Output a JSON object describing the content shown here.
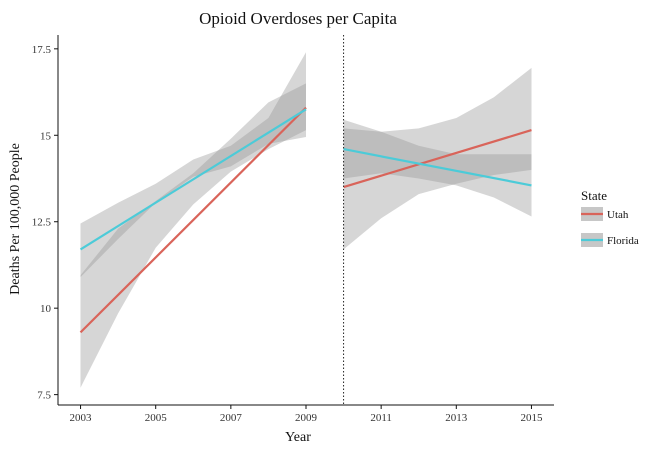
{
  "chart_data": {
    "type": "line",
    "title": "Opioid Overdoses per Capita",
    "xlabel": "Year",
    "ylabel": "Deaths Per 100,000 People",
    "xlim": [
      2002.4,
      2015.6
    ],
    "ylim": [
      7.2,
      17.9
    ],
    "x_ticks": [
      2003,
      2005,
      2007,
      2009,
      2011,
      2013,
      2015
    ],
    "y_ticks": [
      7.5,
      10,
      12.5,
      15,
      17.5
    ],
    "y_tick_labels": [
      "7.5",
      "10",
      "12.5",
      "15",
      "17.5"
    ],
    "grid": false,
    "legend_position": "right",
    "legend_title": "State",
    "cutoff_x": 2010,
    "series": [
      {
        "name": "Utah",
        "color": "#d9645a",
        "segments": [
          {
            "x": [
              2003,
              2009
            ],
            "y": [
              9.3,
              15.8
            ],
            "band_x": [
              2003,
              2004,
              2005,
              2006,
              2007,
              2008,
              2009
            ],
            "band_lower": [
              7.7,
              9.85,
              11.75,
              13.0,
              13.95,
              14.6,
              15.15
            ],
            "band_upper": [
              10.95,
              12.3,
              13.1,
              13.9,
              14.9,
              15.95,
              16.5
            ]
          },
          {
            "x": [
              2010,
              2015
            ],
            "y": [
              13.5,
              15.15
            ],
            "band_x": [
              2010,
              2011,
              2012,
              2013,
              2014,
              2015
            ],
            "band_lower": [
              11.7,
              12.6,
              13.3,
              13.6,
              13.85,
              14.0
            ],
            "band_upper": [
              15.2,
              15.1,
              15.2,
              15.5,
              16.1,
              16.95
            ]
          }
        ]
      },
      {
        "name": "Florida",
        "color": "#4ccbd8",
        "segments": [
          {
            "x": [
              2003,
              2009
            ],
            "y": [
              11.7,
              15.75
            ],
            "band_x": [
              2003,
              2004,
              2005,
              2006,
              2007,
              2008,
              2009
            ],
            "band_lower": [
              10.9,
              12.0,
              13.05,
              13.8,
              14.1,
              14.75,
              14.95
            ],
            "band_upper": [
              12.45,
              13.05,
              13.6,
              14.3,
              14.7,
              15.5,
              17.4
            ]
          },
          {
            "x": [
              2010,
              2015
            ],
            "y": [
              14.6,
              13.55
            ],
            "band_x": [
              2010,
              2011,
              2012,
              2013,
              2014,
              2015
            ],
            "band_lower": [
              13.75,
              13.9,
              13.75,
              13.55,
              13.2,
              12.65
            ],
            "band_upper": [
              15.45,
              15.1,
              14.7,
              14.45,
              14.45,
              14.45
            ]
          }
        ]
      }
    ]
  }
}
